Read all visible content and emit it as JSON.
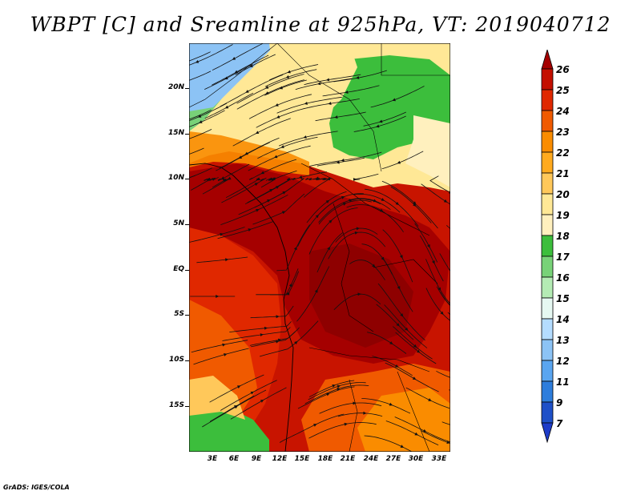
{
  "title": "WBPT [C] and Sreamline at 925hPa, VT: 2019040712",
  "credit": "GrADS: IGES/COLA",
  "lat_labels": [
    "20N",
    "15N",
    "10N",
    "5N",
    "EQ",
    "5S",
    "10S",
    "15S"
  ],
  "lon_labels": [
    "3E",
    "6E",
    "9E",
    "12E",
    "15E",
    "18E",
    "21E",
    "24E",
    "27E",
    "30E",
    "33E"
  ],
  "colorbar": {
    "labels": [
      "26",
      "25",
      "24",
      "23",
      "22",
      "21",
      "20",
      "19",
      "18",
      "17",
      "16",
      "15",
      "14",
      "13",
      "12",
      "11",
      "9",
      "7"
    ],
    "colors": [
      "#a50000",
      "#c40f00",
      "#e02800",
      "#f05a00",
      "#fa8c00",
      "#ffaa1e",
      "#ffc85a",
      "#ffe896",
      "#fff0be",
      "#3cbe3c",
      "#78d278",
      "#b4ebb4",
      "#e6f8f2",
      "#b4dcff",
      "#8cc3f5",
      "#5aa5f0",
      "#2d7ddc",
      "#1e50c8",
      "#1e3cc8"
    ]
  }
}
